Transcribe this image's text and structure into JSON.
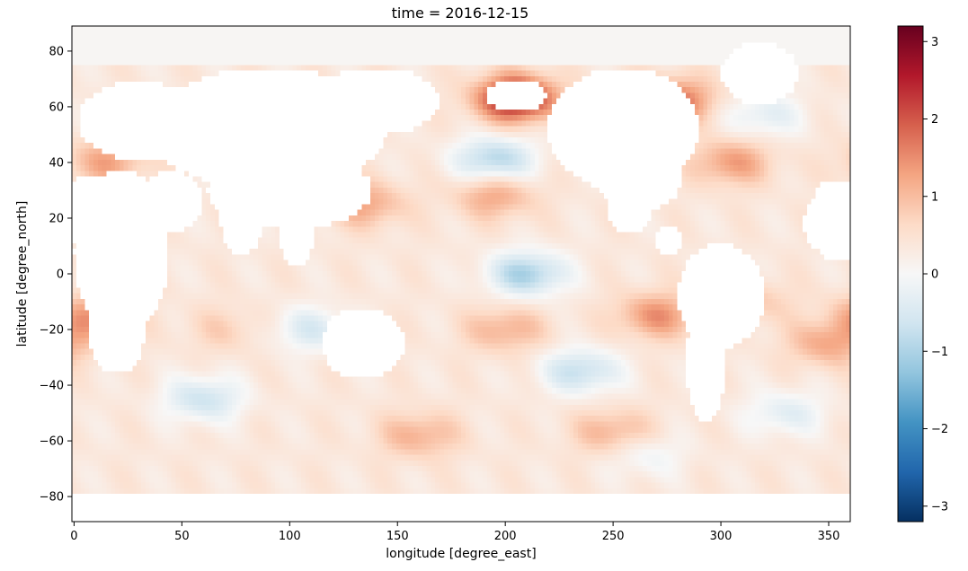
{
  "chart_data": {
    "type": "heatmap",
    "title": "time = 2016-12-15",
    "xlabel": "longitude [degree_east]",
    "ylabel": "latitude [degree_north]",
    "xlim": [
      -1,
      360
    ],
    "ylim": [
      -89,
      89
    ],
    "x_ticks": [
      0,
      50,
      100,
      150,
      200,
      250,
      300,
      350
    ],
    "y_ticks": [
      -80,
      -60,
      -40,
      -20,
      0,
      20,
      40,
      60,
      80
    ],
    "colorbar": {
      "colormap": "RdBu_r",
      "range": [
        -3.2,
        3.2
      ],
      "ticks": [
        -3,
        -2,
        -1,
        0,
        1,
        2,
        3
      ]
    },
    "colors": {
      "min": "#053061",
      "max": "#67001f",
      "zero": "#f7f7f7"
    },
    "ocean_extent_lat": [
      -78,
      88
    ],
    "anomaly_features": [
      {
        "lon": 210,
        "lat": 0,
        "value": -1.3
      },
      {
        "lon": 195,
        "lat": 41,
        "value": -1.2
      },
      {
        "lon": 235,
        "lat": -35,
        "value": -1.0
      },
      {
        "lon": 60,
        "lat": -45,
        "value": -0.9
      },
      {
        "lon": 110,
        "lat": -20,
        "value": -0.7
      },
      {
        "lon": 330,
        "lat": -50,
        "value": -0.6
      },
      {
        "lon": 320,
        "lat": 57,
        "value": -0.6
      },
      {
        "lon": 265,
        "lat": -65,
        "value": -0.4
      },
      {
        "lon": 205,
        "lat": 63,
        "value": 2.6
      },
      {
        "lon": 278,
        "lat": 62,
        "value": 1.6
      },
      {
        "lon": 195,
        "lat": 28,
        "value": 1.0
      },
      {
        "lon": 135,
        "lat": 25,
        "value": 1.0
      },
      {
        "lon": 270,
        "lat": -15,
        "value": 1.2
      },
      {
        "lon": 200,
        "lat": -20,
        "value": 0.9
      },
      {
        "lon": 10,
        "lat": -15,
        "value": 1.1
      },
      {
        "lon": 350,
        "lat": -25,
        "value": 1.0
      },
      {
        "lon": 15,
        "lat": 40,
        "value": 1.0
      },
      {
        "lon": 305,
        "lat": 40,
        "value": 1.1
      },
      {
        "lon": 250,
        "lat": -57,
        "value": 0.9
      },
      {
        "lon": 160,
        "lat": -58,
        "value": 0.9
      },
      {
        "lon": 315,
        "lat": -10,
        "value": 0.6
      },
      {
        "lon": 70,
        "lat": -20,
        "value": 0.5
      }
    ]
  }
}
